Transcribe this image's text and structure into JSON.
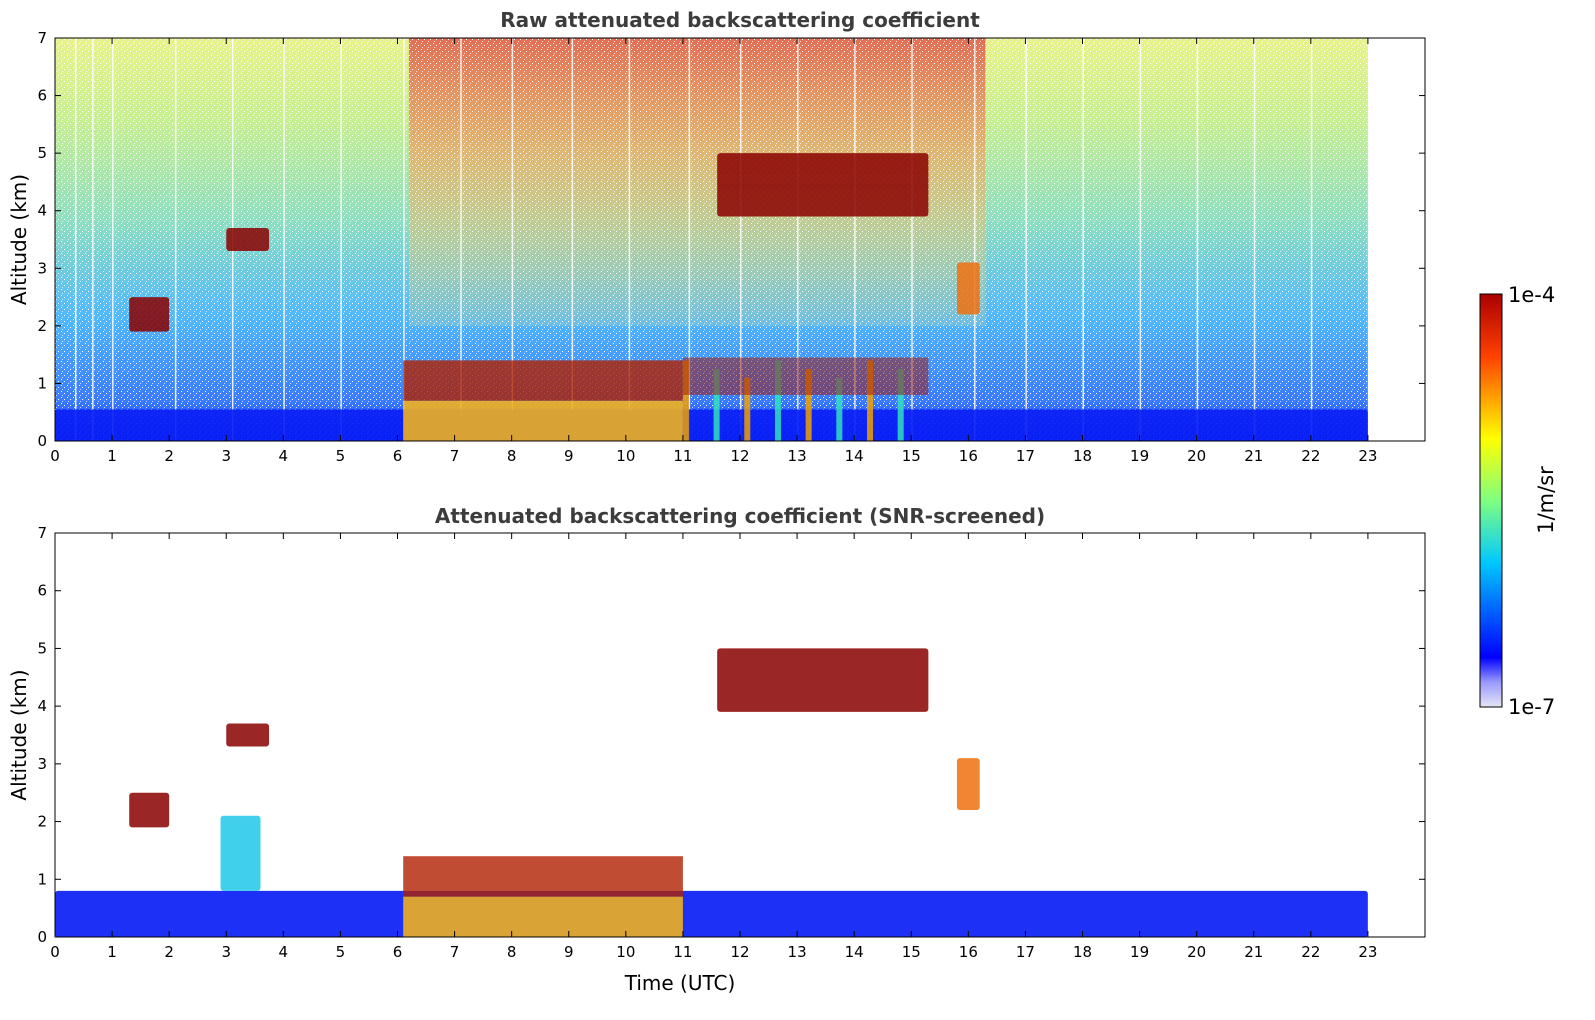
{
  "chart_data": [
    {
      "type": "heatmap",
      "title": "Raw attenuated backscattering coefficient",
      "ylabel": "Altitude (km)",
      "xlabel": "",
      "xlim": [
        0,
        24
      ],
      "ylim": [
        0,
        7
      ],
      "x_ticks": [
        0,
        1,
        2,
        3,
        4,
        5,
        6,
        7,
        8,
        9,
        10,
        11,
        12,
        13,
        14,
        15,
        16,
        17,
        18,
        19,
        20,
        21,
        22,
        23
      ],
      "y_ticks": [
        0,
        1,
        2,
        3,
        4,
        5,
        6,
        7
      ],
      "data_end_time": 23,
      "features": [
        {
          "name": "boundary layer",
          "x": [
            0,
            23
          ],
          "y": [
            0,
            0.55
          ],
          "level": "low"
        },
        {
          "name": "aerosol layer",
          "x": [
            6.1,
            11
          ],
          "y": [
            0,
            1.4
          ],
          "level": "high"
        },
        {
          "name": "cloud",
          "x": [
            1.3,
            2
          ],
          "y": [
            1.9,
            2.5
          ],
          "level": "max"
        },
        {
          "name": "cloud",
          "x": [
            3,
            3.75
          ],
          "y": [
            3.3,
            3.7
          ],
          "level": "max"
        },
        {
          "name": "cloud",
          "x": [
            11.6,
            15.3
          ],
          "y": [
            3.9,
            5
          ],
          "level": "max"
        },
        {
          "name": "cloud",
          "x": [
            15.8,
            16.2
          ],
          "y": [
            2.2,
            3.1
          ],
          "level": "high"
        },
        {
          "name": "convective cloud",
          "x": [
            11,
            15.3
          ],
          "y": [
            0,
            1.5
          ],
          "level": "high"
        }
      ]
    },
    {
      "type": "heatmap",
      "title": "Attenuated backscattering coefficient (SNR-screened)",
      "ylabel": "Altitude (km)",
      "xlabel": "Time (UTC)",
      "xlim": [
        0,
        24
      ],
      "ylim": [
        0,
        7
      ],
      "x_ticks": [
        0,
        1,
        2,
        3,
        4,
        5,
        6,
        7,
        8,
        9,
        10,
        11,
        12,
        13,
        14,
        15,
        16,
        17,
        18,
        19,
        20,
        21,
        22,
        23
      ],
      "y_ticks": [
        0,
        1,
        2,
        3,
        4,
        5,
        6,
        7
      ],
      "data_end_time": 23,
      "features": [
        {
          "name": "boundary layer",
          "x": [
            0,
            23
          ],
          "y": [
            0,
            0.8
          ],
          "level": "low"
        },
        {
          "name": "aerosol layer",
          "x": [
            6.1,
            11
          ],
          "y": [
            0,
            1.4
          ],
          "level": "high"
        },
        {
          "name": "aerosol plume",
          "x": [
            2.9,
            3.6
          ],
          "y": [
            0.8,
            2.1
          ],
          "level": "mid"
        },
        {
          "name": "cloud",
          "x": [
            1.3,
            2
          ],
          "y": [
            1.9,
            2.5
          ],
          "level": "max"
        },
        {
          "name": "cloud",
          "x": [
            3,
            3.75
          ],
          "y": [
            3.3,
            3.7
          ],
          "level": "max"
        },
        {
          "name": "cloud",
          "x": [
            11.6,
            15.3
          ],
          "y": [
            3.9,
            5
          ],
          "level": "max"
        },
        {
          "name": "cloud",
          "x": [
            15.8,
            16.2
          ],
          "y": [
            2.2,
            3.1
          ],
          "level": "high"
        }
      ]
    }
  ],
  "colorbar": {
    "label": "1/m/sr",
    "max_label": "1e-4",
    "min_label": "1e-7",
    "scale": "log",
    "colormap": "jet",
    "colors": [
      "#e6e6f5",
      "#0000ff",
      "#00c8ff",
      "#80ff80",
      "#ffff00",
      "#ff6400",
      "#aa0000"
    ]
  }
}
